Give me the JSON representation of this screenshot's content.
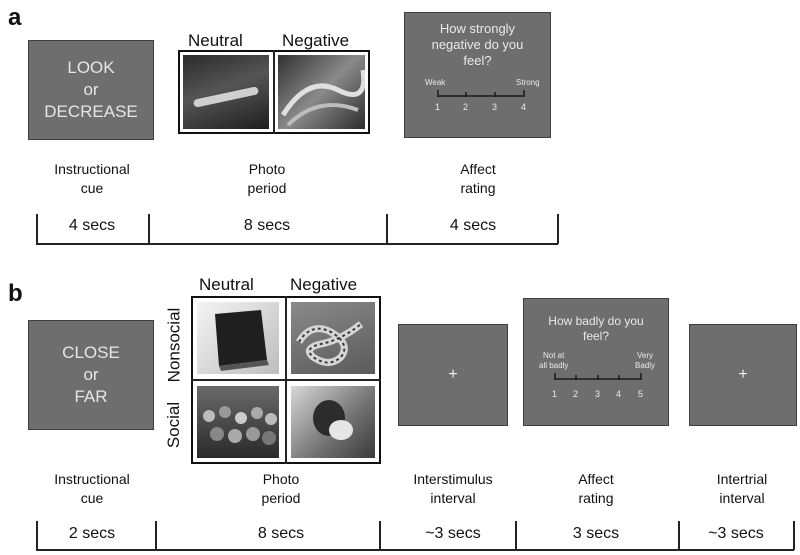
{
  "panel_a": {
    "label": "a",
    "cue_lines": [
      "LOOK",
      "or",
      "DECREASE"
    ],
    "photo_headers": [
      "Neutral",
      "Negative"
    ],
    "rating": {
      "question_lines": [
        "How strongly",
        "negative do you",
        "feel?"
      ],
      "left_anchor": "Weak",
      "right_anchor": "Strong",
      "numbers": [
        "1",
        "2",
        "3",
        "4"
      ]
    },
    "phases": [
      {
        "lines": [
          "Instructional",
          "cue"
        ],
        "duration": "4 secs"
      },
      {
        "lines": [
          "Photo",
          "period"
        ],
        "duration": "8 secs"
      },
      {
        "lines": [
          "Affect",
          "rating"
        ],
        "duration": "4 secs"
      }
    ]
  },
  "panel_b": {
    "label": "b",
    "cue_lines": [
      "CLOSE",
      "or",
      "FAR"
    ],
    "photo_headers": [
      "Neutral",
      "Negative"
    ],
    "row_headers": [
      "Nonsocial",
      "Social"
    ],
    "fixation": "+",
    "rating": {
      "question_lines": [
        "How badly do you",
        "feel?"
      ],
      "left_anchor_lines": [
        "Not at",
        "all badly"
      ],
      "right_anchor_lines": [
        "Very",
        "Badly"
      ],
      "numbers": [
        "1",
        "2",
        "3",
        "4",
        "5"
      ]
    },
    "phases": [
      {
        "lines": [
          "Instructional",
          "cue"
        ],
        "duration": "2 secs"
      },
      {
        "lines": [
          "Photo",
          "period"
        ],
        "duration": "8 secs"
      },
      {
        "lines": [
          "Interstimulus",
          "interval"
        ],
        "duration": "~3 secs"
      },
      {
        "lines": [
          "Affect",
          "rating"
        ],
        "duration": "3 secs"
      },
      {
        "lines": [
          "Intertrial",
          "interval"
        ],
        "duration": "~3 secs"
      }
    ]
  },
  "colors": {
    "screen": "#6e6e6e",
    "screen_text": "#e6e6e6",
    "line": "#222222"
  },
  "icons": {
    "fixation": "fixation-cross-icon"
  }
}
